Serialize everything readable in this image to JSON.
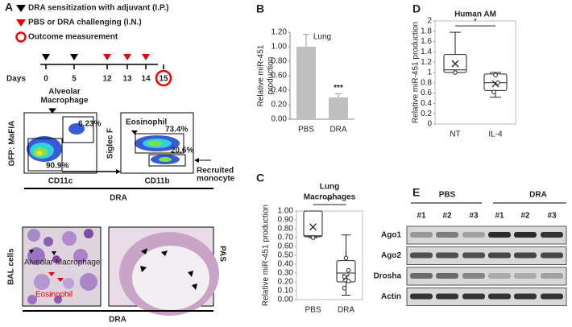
{
  "panel_a": {
    "label": "A",
    "legend": [
      "DRA sensitization with adjuvant (I.P.)",
      "PBS or DRA challenging (I.N.)",
      "Outcome measurement"
    ],
    "days_label": "Days",
    "days": [
      "0",
      "5",
      "12",
      "13",
      "14",
      "15"
    ],
    "flow_left": {
      "y_label": "GFP: MaFIA",
      "x_label": "CD11c",
      "gate_label": [
        "Alveolar",
        "Macrophage"
      ],
      "gates": [
        "6.23%",
        "90.9%"
      ]
    },
    "flow_right": {
      "y_label": "Siglec F",
      "x_label": "CD11b",
      "gate_label": "Eosinophil",
      "gates": [
        "73.4%",
        "20.6%"
      ],
      "side_label": [
        "Recruited",
        "monocyte"
      ]
    },
    "flow_caption": "DRA",
    "images": {
      "left_label": "BAL cells",
      "cell_labels": [
        "Alveolar Macrophage",
        "Eosinophil"
      ],
      "right_label": "PAS",
      "caption": "DRA"
    }
  },
  "chart_data": [
    {
      "type": "bar",
      "panel": "B",
      "title": "Lung",
      "y_label": [
        "Relative miR-451",
        "production"
      ],
      "categories": [
        "PBS",
        "DRA"
      ],
      "values": [
        1.0,
        0.3
      ],
      "errors": [
        0.17,
        0.05
      ],
      "color": "#bfbfbf",
      "annotation": "***",
      "ylim": [
        0,
        1.2
      ],
      "yticks": [
        {
          "value": 0,
          "label": "0.00"
        },
        {
          "value": 0.2,
          "label": "0.20"
        },
        {
          "value": 0.4,
          "label": "0.40"
        },
        {
          "value": 0.6,
          "label": "0.60"
        },
        {
          "value": 0.8,
          "label": "0.80"
        },
        {
          "value": 1.0,
          "label": "1.00"
        },
        {
          "value": 1.2,
          "label": "1.20"
        }
      ]
    },
    {
      "type": "box",
      "panel": "C",
      "title": [
        "Lung",
        "Macrophages"
      ],
      "y_label": "Relative miR-451 production",
      "categories": [
        "PBS",
        "DRA"
      ],
      "annotation": "**",
      "ylim": [
        0,
        1.0
      ],
      "boxes": [
        {
          "min": 0.7,
          "q1": 0.71,
          "median": 0.72,
          "q3": 1.0,
          "max": 1.0,
          "mean": 0.82,
          "points": [
            0.7
          ]
        },
        {
          "min": 0.05,
          "q1": 0.2,
          "median": 0.3,
          "q3": 0.44,
          "max": 0.73,
          "mean": 0.25,
          "points": [
            0.47,
            0.33,
            0.26,
            0.21,
            0.13
          ]
        }
      ],
      "yticks": [
        {
          "value": 0,
          "label": "0.00"
        },
        {
          "value": 0.1,
          "label": "0.10"
        },
        {
          "value": 0.2,
          "label": "0.20"
        },
        {
          "value": 0.3,
          "label": "0.30"
        },
        {
          "value": 0.4,
          "label": "0.40"
        },
        {
          "value": 0.5,
          "label": "0.50"
        },
        {
          "value": 0.6,
          "label": "0.60"
        },
        {
          "value": 0.7,
          "label": "0.70"
        },
        {
          "value": 0.8,
          "label": "0.80"
        },
        {
          "value": 0.9,
          "label": "0.90"
        },
        {
          "value": 1.0,
          "label": "1.00"
        }
      ]
    },
    {
      "type": "box",
      "panel": "D",
      "title": "Human AM",
      "y_label": "Relative miR-451 production",
      "categories": [
        "NT",
        "IL-4"
      ],
      "annotation": "*",
      "ylim": [
        0,
        2
      ],
      "boxes": [
        {
          "min": 1.0,
          "q1": 1.0,
          "median": 1.05,
          "q3": 1.35,
          "max": 1.78,
          "mean": 1.17,
          "points": [
            1.0
          ]
        },
        {
          "min": 0.52,
          "q1": 0.65,
          "median": 0.8,
          "q3": 0.97,
          "max": 1.0,
          "mean": 0.78,
          "points": [
            0.95,
            0.8,
            0.62
          ]
        }
      ],
      "yticks": [
        0,
        0.2,
        0.4,
        0.6,
        0.8,
        1,
        1.2,
        1.4,
        1.6,
        1.8,
        2
      ]
    }
  ],
  "panel_e": {
    "label": "E",
    "groups": [
      "PBS",
      "DRA"
    ],
    "lanes": [
      "#1",
      "#2",
      "#3",
      "#1",
      "#2",
      "#3"
    ],
    "rows": [
      "Ago1",
      "Ago2",
      "Drosha",
      "Actin"
    ]
  }
}
